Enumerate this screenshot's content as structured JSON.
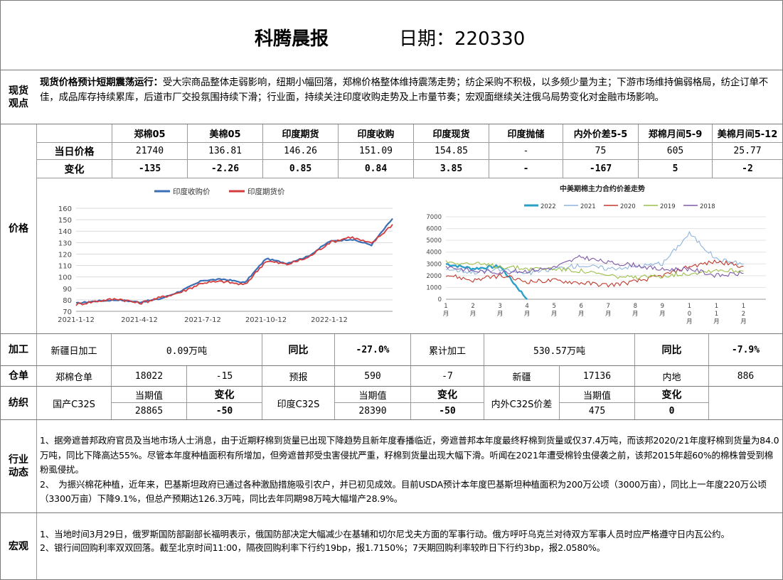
{
  "header": {
    "title": "科腾晨报",
    "date_label": "日期：220330"
  },
  "spot": {
    "label": "现货\n观点",
    "headline": "现货价格预计短期震荡运行：",
    "body": "受大宗商品整体走弱影响，纽期小幅回落，郑棉价格整体维持震荡走势；纺企采购不积极，以多频少量为主；下游市场维持偏弱格局，纺企订单不佳，成品库存持续累库，后道市厂交投氛围持续下滑；行业面，持续关注印度收购走势及上市量节奏；宏观面继续关注俄乌局势变化对金融市场影响。"
  },
  "price": {
    "label": "价格",
    "headers": [
      "郑棉05",
      "美棉05",
      "印度期货",
      "印度收购",
      "印度现货",
      "印度抛储",
      "内外价差5-5",
      "郑棉月间5-9",
      "美棉月间5-12"
    ],
    "row1_label": "当日价格",
    "row1": [
      "21740",
      "136.81",
      "146.26",
      "151.09",
      "154.85",
      "-",
      "75",
      "605",
      "25.77"
    ],
    "row2_label": "变化",
    "row2": [
      "-135",
      "-2.26",
      "0.85",
      "0.84",
      "3.85",
      "-",
      "-167",
      "5",
      "-2"
    ]
  },
  "chart_data": [
    {
      "type": "line",
      "title": "",
      "legend": [
        "印度收购价",
        "印度期货价"
      ],
      "legend_position": "top",
      "colors": [
        "#3a6fb5",
        "#d23c3c"
      ],
      "x_tick_labels": [
        "2021-1-12",
        "2021-4-12",
        "2021-7-12",
        "2021-10-12",
        "2022-1-12"
      ],
      "y_ticks": [
        70,
        80,
        90,
        100,
        110,
        120,
        130,
        140,
        150,
        160
      ],
      "ylim": [
        70,
        160
      ],
      "grid": "horizontal",
      "x": [
        "2021-01-12",
        "2021-02-12",
        "2021-03-12",
        "2021-04-12",
        "2021-05-12",
        "2021-06-12",
        "2021-07-12",
        "2021-08-12",
        "2021-09-12",
        "2021-10-12",
        "2021-11-12",
        "2021-12-12",
        "2022-01-12",
        "2022-02-12",
        "2022-03-12",
        "2022-03-29"
      ],
      "series": [
        {
          "name": "印度收购价",
          "values": [
            77,
            79,
            80,
            78,
            81,
            88,
            97,
            98,
            95,
            116,
            112,
            118,
            131,
            133,
            128,
            151
          ]
        },
        {
          "name": "印度期货价",
          "values": [
            76,
            79,
            81,
            77,
            82,
            87,
            95,
            96,
            93,
            114,
            111,
            117,
            130,
            135,
            129,
            146
          ]
        }
      ]
    },
    {
      "type": "line",
      "title": "中美期棉主力合约价差走势",
      "legend": [
        "2022",
        "2021",
        "2020",
        "2019",
        "2018"
      ],
      "legend_position": "top",
      "colors": [
        "#2aa0c8",
        "#8fb4dc",
        "#c0392b",
        "#9cbf4a",
        "#7f5aa8"
      ],
      "x_tick_labels": [
        "1\n月",
        "2\n月",
        "3\n月",
        "4\n月",
        "5\n月",
        "6\n月",
        "7\n月",
        "8\n月",
        "9\n月",
        "1\n0\n月",
        "1\n1\n月",
        "1\n2\n月"
      ],
      "y_ticks": [
        0,
        1000,
        2000,
        3000,
        4000,
        5000,
        6000,
        7000
      ],
      "ylim": [
        0,
        7000
      ],
      "x": [
        1,
        2,
        3,
        4,
        5,
        6,
        7,
        8,
        9,
        10,
        11,
        12
      ],
      "series": [
        {
          "name": "2022",
          "values": [
            3000,
            2600,
            2800,
            0,
            null,
            null,
            null,
            null,
            null,
            null,
            null,
            null
          ]
        },
        {
          "name": "2021",
          "values": [
            2600,
            2300,
            2500,
            2200,
            2600,
            2900,
            2600,
            2800,
            3000,
            5600,
            3400,
            3000
          ]
        },
        {
          "name": "2020",
          "values": [
            2100,
            1600,
            2000,
            1500,
            1600,
            1400,
            1200,
            1500,
            2000,
            2800,
            3200,
            2800
          ]
        },
        {
          "name": "2019",
          "values": [
            3200,
            3000,
            2800,
            2600,
            2600,
            2400,
            2000,
            1800,
            2000,
            2200,
            2500,
            2400
          ]
        },
        {
          "name": "2018",
          "values": [
            2800,
            2400,
            2300,
            2400,
            2700,
            3600,
            3100,
            2900,
            2500,
            2600,
            2000,
            2200
          ]
        }
      ]
    }
  ],
  "processing": {
    "label": "加工",
    "xj_label": "新疆日加工",
    "xj_value": "0.09万吨",
    "yoy1_label": "同比",
    "yoy1_value": "-27.0%",
    "cum_label": "累计加工",
    "cum_value": "530.57万吨",
    "yoy2_label": "同比",
    "yoy2_value": "-7.9%"
  },
  "warehouse": {
    "label": "仓单",
    "c1": "郑棉仓单",
    "c2": "18022",
    "c3": "-15",
    "c4": "预报",
    "c5": "590",
    "c6": "-7",
    "c7": "新疆",
    "c8": "17136",
    "c9": "内地",
    "c10": "886"
  },
  "textile": {
    "label": "纺织",
    "dom_label": "国产C32S",
    "cur_label": "当期值",
    "chg_label": "变化",
    "dom_cur": "28865",
    "dom_chg": "-50",
    "ind_label": "印度C32S",
    "ind_cur": "28390",
    "ind_chg": "-50",
    "diff_label": "内外C32S价差",
    "diff_cur": "475",
    "diff_chg": "0"
  },
  "industry": {
    "label": "行业\n动态",
    "p1": "1、据旁遮普邦政府官员及当地市场人士消息，由于近期籽棉到货量已出现下降趋势且新年度春播临近，旁遮普邦本年度最终籽棉到货量或仅37.4万吨，而该邦2020/21年度籽棉到货量为84.0万吨，同比下降高达55%。尽管本年度种植面积有所增加，但旁遮普邦受虫害侵扰严重，籽棉到货量出现大幅下滑。听闻在2021年遭受棉铃虫侵袭之前，该邦2015年超60%的棉株曾受到棉粉虱侵扰。",
    "p2": "2、　为振兴棉花种植，近年来，巴基斯坦政府已通过各种激励措施吸引农户，并已初见成效。目前USDA预计本年度巴基斯坦种植面积为200万公顷（3000万亩），同比上一年度220万公顷（3300万亩）下降9.1%，但总产预期达126.3万吨，同比去年同期98万吨大幅增产28.9%。"
  },
  "macro": {
    "label": "宏观",
    "p1": "1、当地时间3月29日，俄罗斯国防部副部长福明表示，俄国防部决定大幅减少在基辅和切尔尼戈夫方面的军事行动。俄方呼吁乌克兰对待双方军事人员时应严格遵守日内瓦公约。",
    "p2": "2、银行间回购利率双双回落。截至北京时间11:00，隔夜回购利率下行约19bp，报1.7150%；7天期回购利率较昨日下行约3bp，报2.0580%。"
  }
}
